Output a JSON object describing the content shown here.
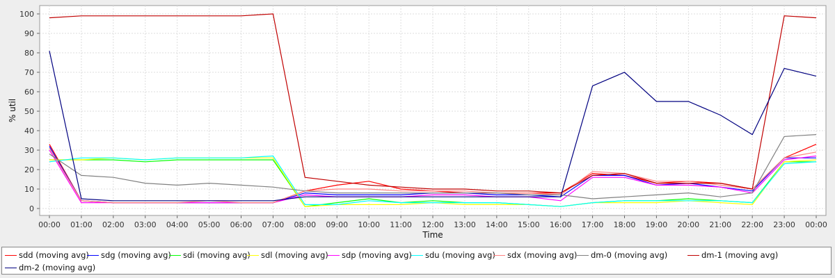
{
  "chart_data": {
    "type": "line",
    "ylabel": "% util",
    "xlabel": "Time",
    "ylim": [
      0,
      100
    ],
    "yticks": [
      0,
      10,
      20,
      30,
      40,
      50,
      60,
      70,
      80,
      90,
      100
    ],
    "xticks": [
      "00:00",
      "01:00",
      "02:00",
      "03:00",
      "04:00",
      "05:00",
      "06:00",
      "07:00",
      "08:00",
      "09:00",
      "10:00",
      "11:00",
      "12:00",
      "13:00",
      "14:00",
      "15:00",
      "16:00",
      "17:00",
      "18:00",
      "19:00",
      "20:00",
      "21:00",
      "22:00",
      "23:00",
      "00:00"
    ],
    "grid": true,
    "legend_position": "bottom",
    "series": [
      {
        "name": "sdd (moving avg)",
        "color": "#ff0000",
        "values": [
          33,
          4,
          3,
          3,
          3,
          3,
          3,
          3,
          9,
          12,
          14,
          10,
          9,
          8,
          8,
          8,
          8,
          18,
          17,
          13,
          14,
          13,
          10,
          26,
          33
        ]
      },
      {
        "name": "sdg (moving avg)",
        "color": "#0000ff",
        "values": [
          32,
          4,
          3,
          3,
          3,
          3,
          3,
          3,
          8,
          7,
          7,
          7,
          8,
          8,
          7,
          7,
          6,
          17,
          17,
          12,
          13,
          11,
          9,
          26,
          26
        ]
      },
      {
        "name": "sdi (moving avg)",
        "color": "#00ff00",
        "values": [
          25,
          25,
          25,
          24,
          25,
          25,
          25,
          25,
          1,
          3,
          5,
          3,
          4,
          3,
          3,
          2,
          1,
          3,
          4,
          4,
          5,
          4,
          3,
          24,
          24
        ]
      },
      {
        "name": "sdl (moving avg)",
        "color": "#ffff00",
        "values": [
          25,
          25,
          26,
          25,
          26,
          26,
          26,
          26,
          1,
          2,
          2,
          2,
          3,
          2,
          2,
          2,
          1,
          3,
          3,
          3,
          4,
          3,
          2,
          24,
          25
        ]
      },
      {
        "name": "sdp (moving avg)",
        "color": "#ff00ff",
        "values": [
          30,
          3,
          3,
          3,
          3,
          3,
          3,
          3,
          7,
          6,
          6,
          6,
          7,
          7,
          6,
          6,
          4,
          16,
          16,
          12,
          12,
          11,
          8,
          25,
          27
        ]
      },
      {
        "name": "sdu (moving avg)",
        "color": "#00ffff",
        "values": [
          24,
          26,
          26,
          25,
          26,
          26,
          26,
          27,
          2,
          2,
          4,
          3,
          3,
          3,
          3,
          2,
          1,
          3,
          4,
          4,
          4,
          4,
          3,
          23,
          24
        ]
      },
      {
        "name": "sdx (moving avg)",
        "color": "#ff8080",
        "values": [
          31,
          4,
          3,
          3,
          3,
          4,
          3,
          3,
          9,
          10,
          10,
          9,
          9,
          9,
          8,
          8,
          7,
          19,
          18,
          14,
          14,
          12,
          10,
          26,
          29
        ]
      },
      {
        "name": "dm-0 (moving avg)",
        "color": "#808080",
        "values": [
          28,
          17,
          16,
          13,
          12,
          13,
          12,
          11,
          9,
          8,
          8,
          8,
          8,
          8,
          8,
          7,
          7,
          5,
          6,
          7,
          8,
          6,
          8,
          37,
          38
        ]
      },
      {
        "name": "dm-1 (moving avg)",
        "color": "#c00000",
        "values": [
          98,
          99,
          99,
          99,
          99,
          99,
          99,
          100,
          16,
          14,
          12,
          11,
          10,
          10,
          9,
          9,
          8,
          17,
          18,
          13,
          13,
          13,
          10,
          99,
          98
        ]
      },
      {
        "name": "dm-2 (moving avg)",
        "color": "#000080",
        "values": [
          81,
          5,
          4,
          4,
          4,
          4,
          4,
          4,
          6,
          6,
          6,
          6,
          6,
          6,
          6,
          6,
          6,
          63,
          70,
          55,
          55,
          48,
          38,
          72,
          68
        ]
      }
    ]
  }
}
